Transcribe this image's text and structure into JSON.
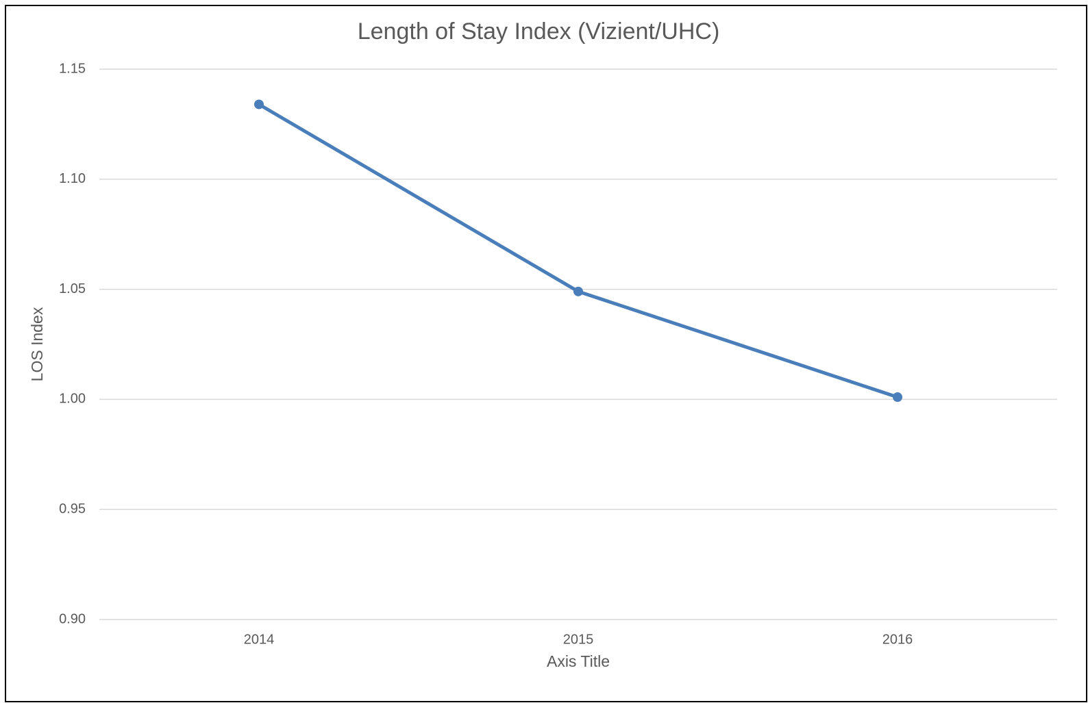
{
  "chart_data": {
    "type": "line",
    "title": "Length of Stay Index (Vizient/UHC)",
    "x_label": "Axis Title",
    "y_label": "LOS Index",
    "categories": [
      "2014",
      "2015",
      "2016"
    ],
    "series": [
      {
        "name": "LOS Index",
        "color": "#4a7ebb",
        "values": [
          1.134,
          1.049,
          1.001
        ]
      }
    ],
    "ylim": [
      0.9,
      1.15
    ],
    "yticks": [
      {
        "value": 0.9,
        "label": "0.90"
      },
      0.95,
      {
        "value": 1.0,
        "label": "1.00"
      },
      1.05,
      {
        "value": 1.1,
        "label": "1.10"
      },
      1.15
    ],
    "grid": true
  }
}
